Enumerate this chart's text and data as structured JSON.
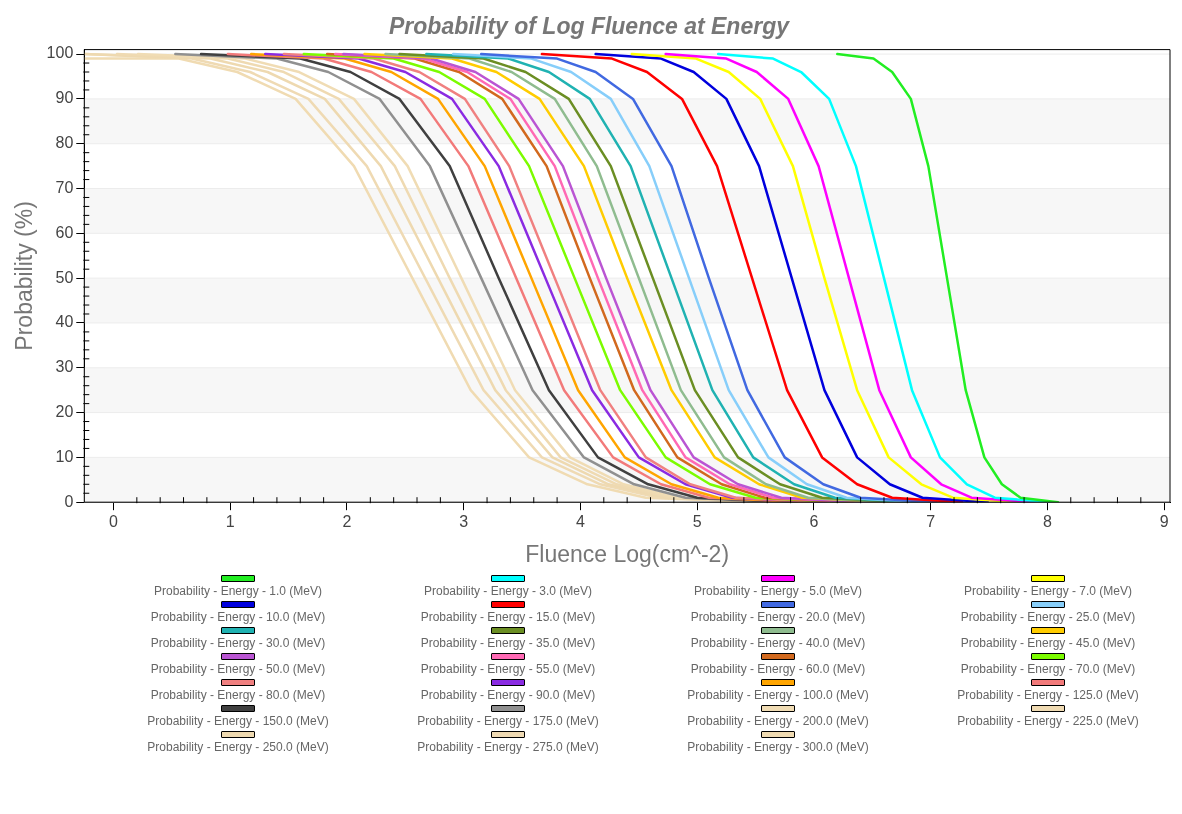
{
  "chart_data": {
    "type": "line",
    "title": "Probability of Log Fluence at Energy",
    "xlabel": "Fluence Log(cm^-2)",
    "ylabel": "Probability (%)",
    "xlim": [
      -0.25,
      9.05
    ],
    "xticks": [
      0,
      1,
      2,
      3,
      4,
      5,
      6,
      7,
      8,
      9
    ],
    "ylim": [
      0,
      101
    ],
    "yticks": [
      0,
      10,
      20,
      30,
      40,
      50,
      60,
      70,
      80,
      90,
      100
    ],
    "grid": "y",
    "legend": "bottom",
    "marker": "none",
    "line_style": "solid",
    "series": [
      {
        "name": "Probability - Energy - 1.0 (MeV)",
        "color": "#22ee22",
        "x": [
          6.2,
          6.51,
          6.67,
          6.83,
          6.98,
          7.14,
          7.3,
          7.46,
          7.61,
          7.77,
          8.09
        ],
        "values": [
          100,
          99,
          96,
          90,
          75,
          50,
          25,
          10,
          4,
          1,
          0
        ]
      },
      {
        "name": "Probability - Energy - 3.0 (MeV)",
        "color": "#00ffff",
        "x": [
          5.18,
          5.65,
          5.89,
          6.13,
          6.36,
          6.6,
          6.84,
          7.08,
          7.31,
          7.55,
          8.03
        ],
        "values": [
          100,
          99,
          96,
          90,
          75,
          50,
          25,
          10,
          4,
          1,
          0
        ]
      },
      {
        "name": "Probability - Energy - 5.0 (MeV)",
        "color": "#ff00ff",
        "x": [
          4.73,
          5.25,
          5.51,
          5.78,
          6.04,
          6.3,
          6.56,
          6.83,
          7.09,
          7.35,
          7.88
        ],
        "values": [
          100,
          99,
          96,
          90,
          75,
          50,
          25,
          10,
          4,
          1,
          0
        ]
      },
      {
        "name": "Probability - Energy - 7.0 (MeV)",
        "color": "#ffff00",
        "x": [
          4.44,
          4.99,
          5.27,
          5.54,
          5.82,
          6.09,
          6.37,
          6.64,
          6.92,
          7.19,
          7.74
        ],
        "values": [
          100,
          99,
          96,
          90,
          75,
          50,
          25,
          10,
          4,
          1,
          0
        ]
      },
      {
        "name": "Probability - Energy - 10.0 (MeV)",
        "color": "#0000dd",
        "x": [
          4.13,
          4.69,
          4.97,
          5.25,
          5.53,
          5.81,
          6.09,
          6.37,
          6.65,
          6.93,
          7.49
        ],
        "values": [
          100,
          99,
          96,
          90,
          75,
          50,
          25,
          10,
          4,
          1,
          0
        ]
      },
      {
        "name": "Probability - Energy - 15.0 (MeV)",
        "color": "#ff0000",
        "x": [
          3.67,
          4.27,
          4.57,
          4.87,
          5.17,
          5.47,
          5.77,
          6.07,
          6.37,
          6.67,
          7.27
        ],
        "values": [
          100,
          99,
          96,
          90,
          75,
          50,
          25,
          10,
          4,
          1,
          0
        ]
      },
      {
        "name": "Probability - Energy - 20.0 (MeV)",
        "color": "#4169e1",
        "x": [
          3.15,
          3.8,
          4.13,
          4.45,
          4.78,
          5.1,
          5.43,
          5.75,
          6.08,
          6.4,
          7.05
        ],
        "values": [
          100,
          99,
          96,
          90,
          75,
          50,
          25,
          10,
          4,
          1,
          0
        ]
      },
      {
        "name": "Probability - Energy - 25.0 (MeV)",
        "color": "#87cefa",
        "x": [
          2.91,
          3.58,
          3.92,
          4.26,
          4.59,
          4.93,
          5.27,
          5.61,
          5.94,
          6.28,
          6.96
        ],
        "values": [
          100,
          99,
          96,
          90,
          75,
          50,
          25,
          10,
          4,
          1,
          0
        ]
      },
      {
        "name": "Probability - Energy - 30.0 (MeV)",
        "color": "#20b2b2",
        "x": [
          2.68,
          3.38,
          3.73,
          4.08,
          4.43,
          4.78,
          5.13,
          5.48,
          5.83,
          6.18,
          6.88
        ],
        "values": [
          100,
          99,
          96,
          90,
          75,
          50,
          25,
          10,
          4,
          1,
          0
        ]
      },
      {
        "name": "Probability - Energy - 35.0 (MeV)",
        "color": "#6b8e23",
        "x": [
          2.45,
          3.17,
          3.53,
          3.9,
          4.26,
          4.62,
          4.98,
          5.35,
          5.71,
          6.07,
          6.8
        ],
        "values": [
          100,
          99,
          96,
          90,
          75,
          50,
          25,
          10,
          4,
          1,
          0
        ]
      },
      {
        "name": "Probability - Energy - 40.0 (MeV)",
        "color": "#8fbc8f",
        "x": [
          2.33,
          3.05,
          3.41,
          3.78,
          4.14,
          4.5,
          4.86,
          5.23,
          5.59,
          5.95,
          6.68
        ],
        "values": [
          100,
          99,
          96,
          90,
          75,
          50,
          25,
          10,
          4,
          1,
          0
        ]
      },
      {
        "name": "Probability - Energy - 45.0 (MeV)",
        "color": "#ffcc00",
        "x": [
          2.15,
          2.9,
          3.28,
          3.65,
          4.03,
          4.4,
          4.78,
          5.15,
          5.53,
          5.9,
          6.65
        ],
        "values": [
          100,
          99,
          96,
          90,
          75,
          50,
          25,
          10,
          4,
          1,
          0
        ]
      },
      {
        "name": "Probability - Energy - 50.0 (MeV)",
        "color": "#ba55d3",
        "x": [
          1.97,
          2.72,
          3.1,
          3.47,
          3.85,
          4.22,
          4.6,
          4.97,
          5.35,
          5.72,
          6.47
        ],
        "values": [
          100,
          99,
          96,
          90,
          75,
          50,
          25,
          10,
          4,
          1,
          0
        ]
      },
      {
        "name": "Probability - Energy - 55.0 (MeV)",
        "color": "#ff69b4",
        "x": [
          1.9,
          2.65,
          3.03,
          3.4,
          3.78,
          4.15,
          4.53,
          4.9,
          5.28,
          5.65,
          6.4
        ],
        "values": [
          100,
          99,
          96,
          90,
          75,
          50,
          25,
          10,
          4,
          1,
          0
        ]
      },
      {
        "name": "Probability - Energy - 60.0 (MeV)",
        "color": "#d2691e",
        "x": [
          1.83,
          2.58,
          2.96,
          3.33,
          3.71,
          4.08,
          4.46,
          4.83,
          5.21,
          5.58,
          6.33
        ],
        "values": [
          100,
          99,
          96,
          90,
          75,
          50,
          25,
          10,
          4,
          1,
          0
        ]
      },
      {
        "name": "Probability - Energy - 70.0 (MeV)",
        "color": "#7cfc00",
        "x": [
          1.63,
          2.4,
          2.79,
          3.18,
          3.56,
          3.95,
          4.34,
          4.73,
          5.11,
          5.5,
          6.28
        ],
        "values": [
          100,
          99,
          96,
          90,
          75,
          50,
          25,
          10,
          4,
          1,
          0
        ]
      },
      {
        "name": "Probability - Energy - 80.0 (MeV)",
        "color": "#f08080",
        "x": [
          1.46,
          2.23,
          2.62,
          3.01,
          3.39,
          3.78,
          4.17,
          4.56,
          4.94,
          5.33,
          6.11
        ],
        "values": [
          100,
          99,
          96,
          90,
          75,
          50,
          25,
          10,
          4,
          1,
          0
        ]
      },
      {
        "name": "Probability - Energy - 90.0 (MeV)",
        "color": "#8a2be2",
        "x": [
          1.3,
          2.1,
          2.5,
          2.9,
          3.3,
          3.7,
          4.1,
          4.5,
          4.9,
          5.3,
          6.1
        ],
        "values": [
          100,
          99,
          96,
          90,
          75,
          50,
          25,
          10,
          4,
          1,
          0
        ]
      },
      {
        "name": "Probability - Energy - 100.0 (MeV)",
        "color": "#ffa500",
        "x": [
          1.18,
          1.98,
          2.38,
          2.78,
          3.18,
          3.58,
          3.98,
          4.38,
          4.78,
          5.18,
          5.98
        ],
        "values": [
          100,
          99,
          96,
          90,
          75,
          50,
          25,
          10,
          4,
          1,
          0
        ]
      },
      {
        "name": "Probability - Energy - 125.0 (MeV)",
        "color": "#f27a7a",
        "x": [
          0.98,
          1.8,
          2.21,
          2.63,
          3.04,
          3.45,
          3.86,
          4.28,
          4.69,
          5.1,
          5.93
        ],
        "values": [
          100,
          99,
          96,
          90,
          75,
          50,
          25,
          10,
          4,
          1,
          0
        ]
      },
      {
        "name": "Probability - Energy - 150.0 (MeV)",
        "color": "#404040",
        "x": [
          0.75,
          1.6,
          2.03,
          2.45,
          2.88,
          3.3,
          3.73,
          4.15,
          4.58,
          5.0,
          5.85
        ],
        "values": [
          100,
          99,
          96,
          90,
          75,
          50,
          25,
          10,
          4,
          1,
          0
        ]
      },
      {
        "name": "Probability - Energy - 175.0 (MeV)",
        "color": "#909090",
        "x": [
          0.53,
          1.4,
          1.84,
          2.28,
          2.71,
          3.15,
          3.59,
          4.03,
          4.46,
          4.9,
          5.78
        ],
        "values": [
          100,
          99,
          96,
          90,
          75,
          50,
          25,
          10,
          4,
          1,
          0
        ]
      },
      {
        "name": "Probability - Energy - 200.0 (MeV)",
        "color": "#f0dcb4",
        "x": [
          0.21,
          1.13,
          1.59,
          2.06,
          2.52,
          2.98,
          3.44,
          3.91,
          4.37,
          4.83,
          5.76
        ],
        "values": [
          100,
          99,
          96,
          90,
          75,
          50,
          25,
          10,
          4,
          1,
          0
        ]
      },
      {
        "name": "Probability - Energy - 225.0 (MeV)",
        "color": "#efdab2",
        "x": [
          0.03,
          0.98,
          1.46,
          1.93,
          2.41,
          2.88,
          3.36,
          3.83,
          4.31,
          4.78,
          5.73
        ],
        "values": [
          100,
          99,
          96,
          90,
          75,
          50,
          25,
          10,
          4,
          1,
          0
        ]
      },
      {
        "name": "Probability - Energy - 250.0 (MeV)",
        "color": "#eed9b0",
        "x": [
          -0.25,
          0.83,
          1.32,
          1.81,
          2.29,
          2.78,
          3.27,
          3.76,
          4.24,
          4.73,
          5.71
        ],
        "values": [
          100,
          99,
          96,
          90,
          75,
          50,
          25,
          10,
          4,
          1,
          0
        ]
      },
      {
        "name": "Probability - Energy - 275.0 (MeV)",
        "color": "#efdab3",
        "x": [
          -0.25,
          0.67,
          1.17,
          1.67,
          2.17,
          2.67,
          3.17,
          3.67,
          4.17,
          4.67,
          5.67
        ],
        "values": [
          100,
          99,
          96,
          90,
          75,
          50,
          25,
          10,
          4,
          1,
          0
        ]
      },
      {
        "name": "Probability - Energy - 300.0 (MeV)",
        "color": "#f0dbb2",
        "x": [
          -0.25,
          0.56,
          1.06,
          1.56,
          2.06,
          2.56,
          3.06,
          3.56,
          4.06,
          4.56,
          5.56
        ],
        "values": [
          99,
          99,
          96,
          90,
          75,
          50,
          25,
          10,
          4,
          1,
          0
        ]
      }
    ]
  }
}
